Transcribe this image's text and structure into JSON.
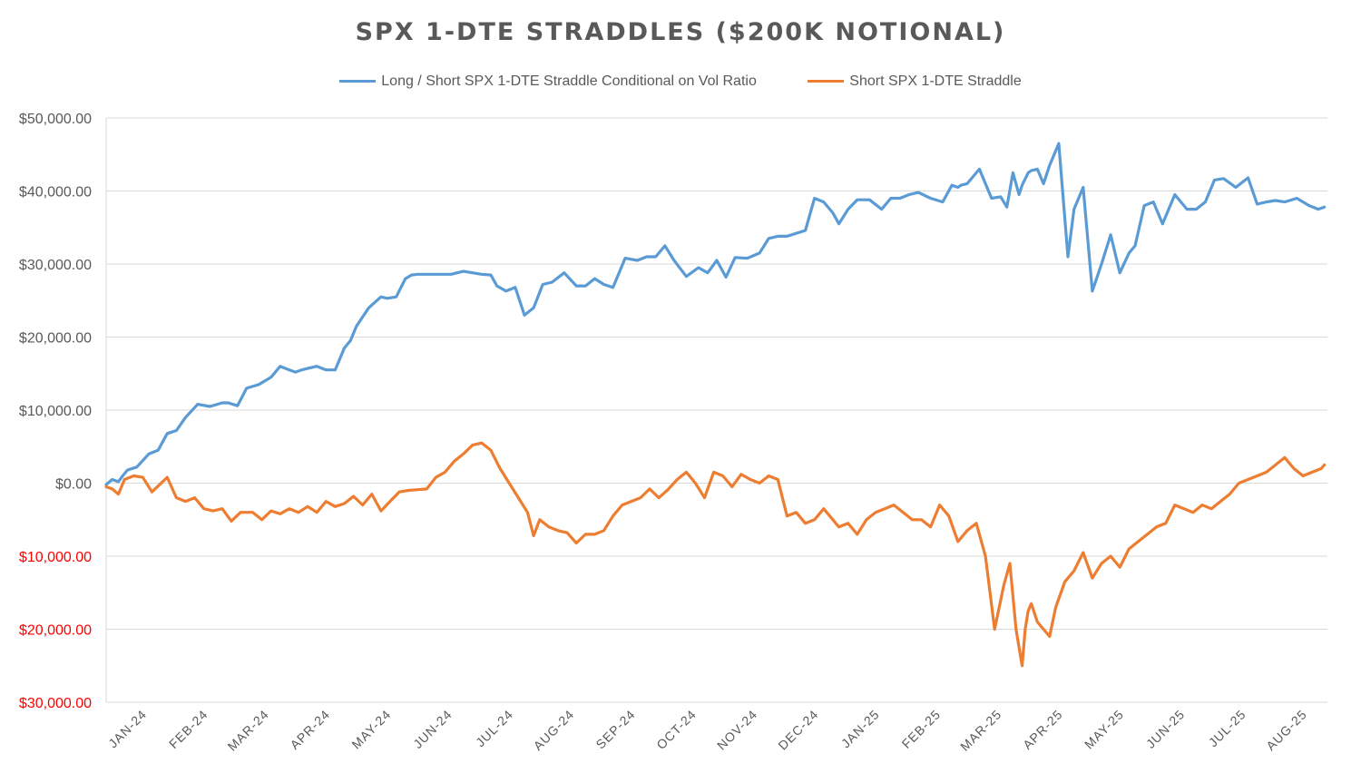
{
  "chart_data": {
    "type": "line",
    "title": "SPX 1-DTE STRADDLES ($200K NOTIONAL)",
    "xlabel": "",
    "ylabel": "",
    "ylim": [
      -30000,
      50000
    ],
    "y_ticks": [
      50000,
      40000,
      30000,
      20000,
      10000,
      0,
      -10000,
      -20000,
      -30000
    ],
    "y_tick_labels": [
      "$50,000.00",
      "$40,000.00",
      "$30,000.00",
      "$20,000.00",
      "$10,000.00",
      "$0.00",
      "$10,000.00",
      "$20,000.00",
      "$30,000.00"
    ],
    "categories": [
      "JAN-24",
      "FEB-24",
      "MAR-24",
      "APR-24",
      "MAY-24",
      "JUN-24",
      "JUL-24",
      "AUG-24",
      "SEP-24",
      "OCT-24",
      "NOV-24",
      "DEC-24",
      "JAN-25",
      "FEB-25",
      "MAR-25",
      "APR-25",
      "MAY-25",
      "JUN-25",
      "JUL-25",
      "AUG-25"
    ],
    "grid": true,
    "legend": "top",
    "negative_tick_color": "#ff0000",
    "positive_tick_color": "#595959",
    "series": [
      {
        "name": "Long / Short SPX 1-DTE Straddle Conditional on Vol Ratio",
        "color": "#5b9bd5",
        "x": [
          0,
          0.1,
          0.2,
          0.27,
          0.35,
          0.5,
          0.7,
          0.85,
          1.0,
          1.15,
          1.3,
          1.5,
          1.7,
          1.9,
          2.0,
          2.15,
          2.3,
          2.5,
          2.7,
          2.85,
          3.0,
          3.1,
          3.2,
          3.3,
          3.45,
          3.6,
          3.75,
          3.9,
          4.0,
          4.1,
          4.3,
          4.5,
          4.6,
          4.75,
          4.9,
          5.0,
          5.1,
          5.3,
          5.5,
          5.65,
          5.85,
          6.0,
          6.15,
          6.3,
          6.4,
          6.55,
          6.7,
          6.85,
          7.0,
          7.15,
          7.3,
          7.5,
          7.7,
          7.85,
          8.0,
          8.15,
          8.3,
          8.5,
          8.7,
          8.85,
          9.0,
          9.15,
          9.3,
          9.5,
          9.7,
          9.85,
          10.0,
          10.15,
          10.3,
          10.5,
          10.7,
          10.85,
          11.0,
          11.15,
          11.3,
          11.45,
          11.6,
          11.75,
          11.9,
          12.0,
          12.15,
          12.3,
          12.5,
          12.7,
          12.85,
          13.0,
          13.15,
          13.3,
          13.5,
          13.7,
          13.85,
          13.95,
          14.0,
          14.1,
          14.3,
          14.5,
          14.65,
          14.75,
          14.85,
          14.95,
          15.0,
          15.1,
          15.15,
          15.25,
          15.35,
          15.45,
          15.6,
          15.75,
          15.85,
          16.0,
          16.15,
          16.3,
          16.45,
          16.6,
          16.75,
          16.85,
          17.0,
          17.15,
          17.3,
          17.5,
          17.7,
          17.85,
          18.0,
          18.15,
          18.3,
          18.5,
          18.7,
          18.85,
          19.0,
          19.15,
          19.3,
          19.5,
          19.7,
          19.85,
          19.95
        ],
        "values": [
          -200,
          500,
          200,
          1000,
          1800,
          2200,
          4000,
          4500,
          6800,
          7200,
          9000,
          10800,
          10500,
          11000,
          11000,
          10600,
          13000,
          13500,
          14500,
          16000,
          15500,
          15200,
          15500,
          15700,
          16000,
          15500,
          15500,
          18500,
          19500,
          21500,
          24000,
          25500,
          25300,
          25500,
          28000,
          28500,
          28600,
          28600,
          28600,
          28600,
          29000,
          28800,
          28600,
          28500,
          27000,
          26300,
          26800,
          23000,
          24000,
          27200,
          27500,
          28800,
          27000,
          27000,
          28000,
          27200,
          26800,
          30800,
          30500,
          31000,
          31000,
          32500,
          30500,
          28300,
          29500,
          28800,
          30500,
          28200,
          30900,
          30800,
          31500,
          33500,
          33800,
          33800,
          34200,
          34600,
          39000,
          38500,
          37000,
          35500,
          37500,
          38800,
          38800,
          37500,
          39000,
          39000,
          39500,
          39800,
          39000,
          38500,
          40800,
          40500,
          40800,
          41000,
          43000,
          39000,
          39200,
          37800,
          42500,
          39500,
          40800,
          42500,
          42800,
          43000,
          41000,
          43500,
          46500,
          31000,
          37500,
          40500,
          26300,
          30000,
          34000,
          28800,
          31500,
          32500,
          38000,
          38500,
          35500,
          39500,
          37500,
          37500,
          38500,
          41500,
          41700,
          40500,
          41800,
          38200,
          38500,
          38700,
          38500,
          39000,
          38000,
          37500,
          37800
        ],
        "smooth_values": [
          -200,
          500,
          200,
          1000,
          1800,
          2200,
          4000,
          4500,
          6800,
          7200,
          9000,
          10800,
          10500,
          11000,
          11000,
          10600,
          13000,
          13500,
          14500,
          16000,
          15500,
          15200,
          15500,
          15700,
          16000,
          15500,
          15500,
          18500,
          19500,
          21500,
          24000,
          25500,
          25300,
          25500,
          28000,
          28500,
          28600,
          28600,
          28600,
          28600,
          29000,
          28800,
          28600,
          28500,
          27000,
          26300,
          26800,
          23000,
          24000,
          27200,
          27500,
          28800,
          27000,
          27000,
          28000,
          27200,
          26800,
          30800,
          30500,
          31000,
          31000,
          32500,
          30500,
          28300,
          29500,
          28800,
          30500,
          28200,
          30900,
          30800,
          31500,
          33500,
          33800,
          33800,
          34200,
          34600,
          39000,
          38500,
          37000,
          35500,
          37500,
          38800,
          38800,
          37500,
          39000,
          39000,
          39500,
          39800,
          39000,
          38500,
          40800,
          40500,
          40800,
          41000,
          43000,
          39000,
          39200,
          37800,
          42500,
          39500,
          40800,
          42500,
          42800,
          43000,
          41000,
          43500,
          46500,
          31000,
          37500,
          40500,
          26300,
          30000,
          34000,
          28800,
          31500,
          32500,
          38000,
          38500,
          35500,
          39500,
          37500,
          37500,
          38500,
          41500,
          41700,
          40500,
          41800,
          38200,
          38500,
          38700,
          38500,
          39000,
          38000,
          37500,
          37800
        ]
      },
      {
        "name": "Short SPX 1-DTE Straddle",
        "color": "#ed7d31",
        "x": [
          0,
          0.1,
          0.2,
          0.3,
          0.45,
          0.6,
          0.75,
          0.9,
          1.0,
          1.15,
          1.3,
          1.45,
          1.6,
          1.75,
          1.9,
          2.05,
          2.2,
          2.4,
          2.55,
          2.7,
          2.85,
          3.0,
          3.15,
          3.3,
          3.45,
          3.6,
          3.75,
          3.9,
          4.05,
          4.2,
          4.35,
          4.5,
          4.65,
          4.8,
          4.95,
          5.1,
          5.25,
          5.4,
          5.55,
          5.7,
          5.85,
          6.0,
          6.15,
          6.3,
          6.45,
          6.6,
          6.75,
          6.9,
          7.0,
          7.1,
          7.25,
          7.4,
          7.55,
          7.7,
          7.85,
          8.0,
          8.15,
          8.3,
          8.45,
          8.6,
          8.75,
          8.9,
          9.05,
          9.2,
          9.35,
          9.5,
          9.65,
          9.8,
          9.95,
          10.1,
          10.25,
          10.4,
          10.55,
          10.7,
          10.85,
          11.0,
          11.15,
          11.3,
          11.45,
          11.6,
          11.75,
          11.9,
          12.0,
          12.15,
          12.3,
          12.45,
          12.6,
          12.75,
          12.9,
          13.05,
          13.2,
          13.35,
          13.5,
          13.65,
          13.8,
          13.95,
          14.1,
          14.25,
          14.4,
          14.55,
          14.7,
          14.8,
          14.9,
          15.0,
          15.05,
          15.1,
          15.15,
          15.25,
          15.35,
          15.45,
          15.55,
          15.7,
          15.85,
          16.0,
          16.15,
          16.3,
          16.45,
          16.6,
          16.75,
          16.9,
          17.05,
          17.2,
          17.35,
          17.5,
          17.65,
          17.8,
          17.95,
          18.1,
          18.25,
          18.4,
          18.55,
          18.7,
          18.85,
          19.0,
          19.15,
          19.3,
          19.45,
          19.6,
          19.75,
          19.9,
          19.95
        ],
        "values": [
          -500,
          -800,
          -1500,
          500,
          1000,
          800,
          -1200,
          0,
          800,
          -2000,
          -2500,
          -2000,
          -3500,
          -3800,
          -3500,
          -5200,
          -4000,
          -4000,
          -5000,
          -3800,
          -4200,
          -3500,
          -4000,
          -3200,
          -4000,
          -2500,
          -3200,
          -2800,
          -1800,
          -3000,
          -1500,
          -3800,
          -2500,
          -1200,
          -1000,
          -900,
          -800,
          800,
          1500,
          3000,
          4000,
          5200,
          5500,
          4500,
          2000,
          0,
          -2000,
          -4000,
          -7200,
          -5000,
          -6000,
          -6500,
          -6800,
          -8200,
          -7000,
          -7000,
          -6500,
          -4500,
          -3000,
          -2500,
          -2000,
          -800,
          -2000,
          -900,
          500,
          1500,
          0,
          -2000,
          1500,
          1000,
          -500,
          1200,
          500,
          0,
          1000,
          500,
          -4500,
          -4000,
          -5500,
          -5000,
          -3500,
          -5000,
          -6000,
          -5500,
          -7000,
          -5000,
          -4000,
          -3500,
          -3000,
          -4000,
          -5000,
          -5000,
          -6000,
          -3000,
          -4500,
          -8000,
          -6500,
          -5500,
          -10000,
          -20000,
          -14000,
          -11000,
          -20000,
          -25000,
          -20000,
          -17500,
          -16500,
          -19000,
          -20000,
          -21000,
          -17000,
          -13500,
          -12000,
          -9500,
          -13000,
          -11000,
          -10000,
          -11500,
          -9000,
          -8000,
          -7000,
          -6000,
          -5500,
          -3000,
          -3500,
          -4000,
          -3000,
          -3500,
          -2500,
          -1500,
          0,
          500,
          1000,
          1500,
          2500,
          3500,
          2000,
          1000,
          1500,
          2000,
          2500
        ],
        "smooth_values": []
      }
    ]
  }
}
